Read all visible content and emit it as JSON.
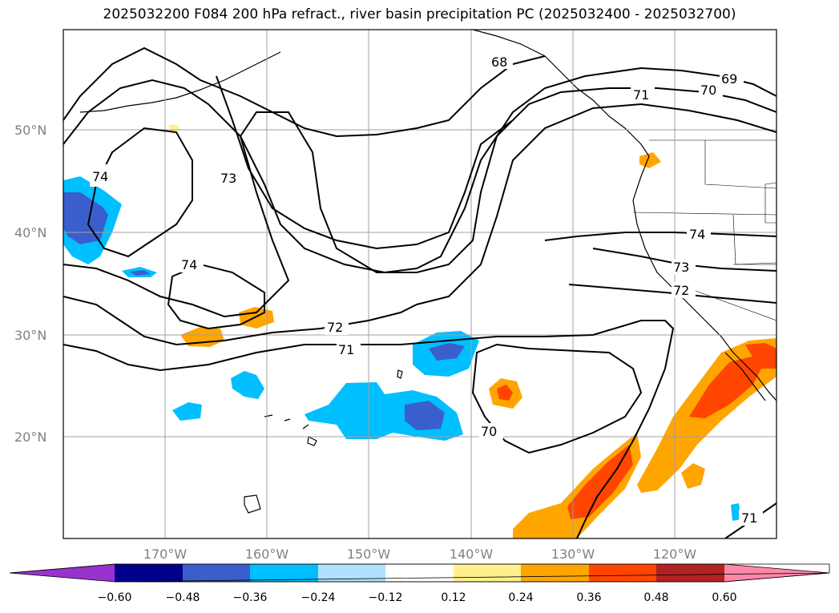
{
  "title": "2025032200 F084 200 hPa refract., river basin precipitation PC (2025032400 - 2025032700)",
  "lat_labels": [
    "50°N",
    "40°N",
    "30°N",
    "20°N"
  ],
  "lon_labels": [
    "170°W",
    "160°W",
    "150°W",
    "140°W",
    "130°W",
    "120°W"
  ],
  "contour_labels": [
    "68",
    "69",
    "70",
    "71",
    "72",
    "73",
    "74",
    "70",
    "71"
  ],
  "colorbar": {
    "ticks": [
      "−0.60",
      "−0.48",
      "−0.36",
      "−0.24",
      "−0.12",
      "0.12",
      "0.24",
      "0.36",
      "0.48",
      "0.60"
    ],
    "colors": [
      "#9932cc",
      "#00008b",
      "#3a5fcd",
      "#00bfff",
      "#b0e2ff",
      "#ffffff",
      "#fff08c",
      "#ffa500",
      "#ff4500",
      "#b22222",
      "#ff88aa"
    ]
  },
  "colors": {
    "contour": "#000000",
    "grid": "#a0a0a0",
    "axis_label": "#808080"
  }
}
